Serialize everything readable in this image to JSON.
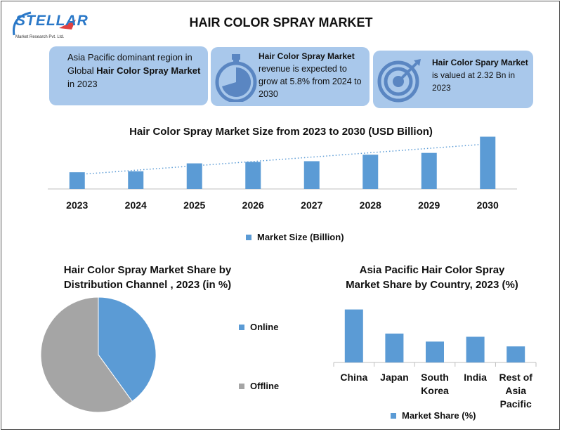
{
  "header": {
    "logo_text": "STELLAR",
    "logo_subtext": "Market Research Pvt. Ltd.",
    "title": "HAIR COLOR SPRAY MARKET"
  },
  "cards": [
    {
      "pre": "Asia Pacific dominant region in Global ",
      "bold": "Hair Color Spray Market",
      "post": " in 2023",
      "icon": "none"
    },
    {
      "pre": "",
      "bold": "Hair Color Spray Market",
      "post": " revenue is expected to grow at 5.8% from 2024 to 2030",
      "icon": "stopwatch-icon"
    },
    {
      "pre": "",
      "bold": "Hair Color Spary Market",
      "post": " is valued at 2.32 Bn in 2023",
      "icon": "target-icon"
    }
  ],
  "colors": {
    "bar": "#5b9bd5",
    "pie_online": "#5b9bd5",
    "pie_offline": "#a5a5a5",
    "card_bg": "#a9c8eb",
    "icon": "#5a86c2"
  },
  "chart_data": [
    {
      "type": "bar",
      "title": "Hair Color Spray Market Size from 2023 to 2030 (USD Billion)",
      "categories": [
        "2023",
        "2024",
        "2025",
        "2026",
        "2027",
        "2028",
        "2029",
        "2030"
      ],
      "series": [
        {
          "name": "Market Size (Billion)",
          "values": [
            2.32,
            2.45,
            3.55,
            3.75,
            3.85,
            4.75,
            5.0,
            7.25
          ]
        }
      ],
      "trendline": "linear dotted",
      "ylim": [
        0,
        7.5
      ],
      "legend": "bottom"
    },
    {
      "type": "pie",
      "title": "Hair Color Spray Market Share by Distribution Channel , 2023 (in %)",
      "labels": [
        "Online",
        "Offline"
      ],
      "values": [
        40,
        60
      ],
      "legend": "right"
    },
    {
      "type": "bar",
      "title": "Asia Pacific Hair Color Spray Market Share by Country, 2023 (%)",
      "categories": [
        "China",
        "Japan",
        "South Korea",
        "India",
        "Rest of Asia Pacific"
      ],
      "category_lines": [
        [
          "China"
        ],
        [
          "Japan"
        ],
        [
          "South",
          "Korea"
        ],
        [
          "India"
        ],
        [
          "Rest of",
          "Asia",
          "Pacific"
        ]
      ],
      "series": [
        {
          "name": "Market Share (%)",
          "values": [
            33,
            18,
            13,
            16,
            10
          ]
        }
      ],
      "ylim": [
        0,
        35
      ],
      "legend": "bottom"
    }
  ]
}
